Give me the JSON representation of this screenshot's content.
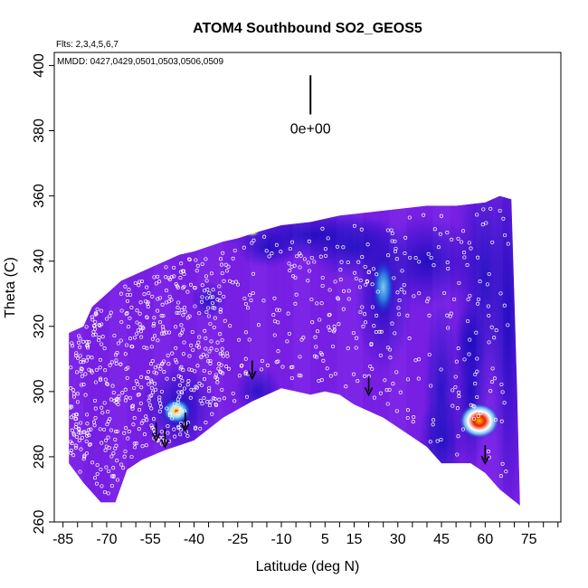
{
  "chart_data": {
    "type": "heatmap",
    "title": "ATOM4 Southbound SO2_GEOS5",
    "annotations": {
      "flights": "Flts: 2,3,4,5,6,7",
      "dates": "MMDD: 0427,0429,0501,0503,0506,0509"
    },
    "xlabel": "Latitude (deg N)",
    "ylabel": "Theta (C)",
    "xlim": [
      -88,
      86
    ],
    "ylim": [
      260,
      404
    ],
    "x_ticks": [
      -85,
      -70,
      -55,
      -40,
      -25,
      -10,
      5,
      15,
      30,
      45,
      60,
      75
    ],
    "x_minor_step": 5,
    "y_ticks": [
      260,
      280,
      300,
      320,
      340,
      360,
      380,
      400
    ],
    "grid": false,
    "scale_bar": {
      "label": "0e+00",
      "x": 0,
      "y_range": [
        385,
        397
      ]
    },
    "colors": {
      "background_field": "#7a22e6",
      "low": "#1010c8",
      "mid": "#2a7be0",
      "high_light": "#bfe9ff",
      "hot": "#e82000",
      "peak": "#f6c000",
      "arrow": "#000000",
      "points": "#ffffff"
    },
    "field_upper_boundary": [
      [
        -83,
        318
      ],
      [
        -78,
        320
      ],
      [
        -75,
        326
      ],
      [
        -70,
        330
      ],
      [
        -65,
        334
      ],
      [
        -60,
        336
      ],
      [
        -55,
        338
      ],
      [
        -45,
        342
      ],
      [
        -40,
        343
      ],
      [
        -30,
        346
      ],
      [
        -25,
        347
      ],
      [
        -18,
        349
      ],
      [
        -10,
        351
      ],
      [
        0,
        352
      ],
      [
        10,
        354
      ],
      [
        20,
        355
      ],
      [
        30,
        356
      ],
      [
        40,
        357
      ],
      [
        50,
        357
      ],
      [
        60,
        358
      ],
      [
        65,
        360
      ],
      [
        69,
        359
      ],
      [
        71,
        300
      ],
      [
        72,
        265
      ]
    ],
    "field_lower_boundary": [
      [
        -83,
        278
      ],
      [
        -78,
        272
      ],
      [
        -72,
        266
      ],
      [
        -67,
        266
      ],
      [
        -63,
        276
      ],
      [
        -58,
        279
      ],
      [
        -50,
        282
      ],
      [
        -40,
        285
      ],
      [
        -30,
        292
      ],
      [
        -20,
        297
      ],
      [
        -10,
        301
      ],
      [
        -5,
        300
      ],
      [
        0,
        299
      ],
      [
        5,
        300
      ],
      [
        10,
        299
      ],
      [
        15,
        296
      ],
      [
        20,
        294
      ],
      [
        25,
        292
      ],
      [
        35,
        286
      ],
      [
        40,
        283
      ],
      [
        45,
        278
      ],
      [
        50,
        278
      ],
      [
        55,
        278
      ],
      [
        60,
        275
      ],
      [
        65,
        270
      ],
      [
        72,
        265
      ]
    ],
    "hotspots": [
      {
        "lat": 58,
        "theta": 291,
        "lat_width": 14,
        "theta_height": 11,
        "level": "high"
      },
      {
        "lat": -46,
        "theta": 294,
        "lat_width": 10,
        "theta_height": 8,
        "level": "medium"
      },
      {
        "lat": 25,
        "theta": 332,
        "lat_width": 8,
        "theta_height": 18,
        "level": "low"
      },
      {
        "lat": -20,
        "theta": 349,
        "lat_width": 5,
        "theta_height": 3,
        "level": "small"
      }
    ],
    "arrows": [
      {
        "lat": -53,
        "theta": 285
      },
      {
        "lat": -50,
        "theta": 283
      },
      {
        "lat": -43,
        "theta": 288
      },
      {
        "lat": -20,
        "theta": 304
      },
      {
        "lat": 20,
        "theta": 299
      },
      {
        "lat": 60,
        "theta": 278
      }
    ]
  }
}
